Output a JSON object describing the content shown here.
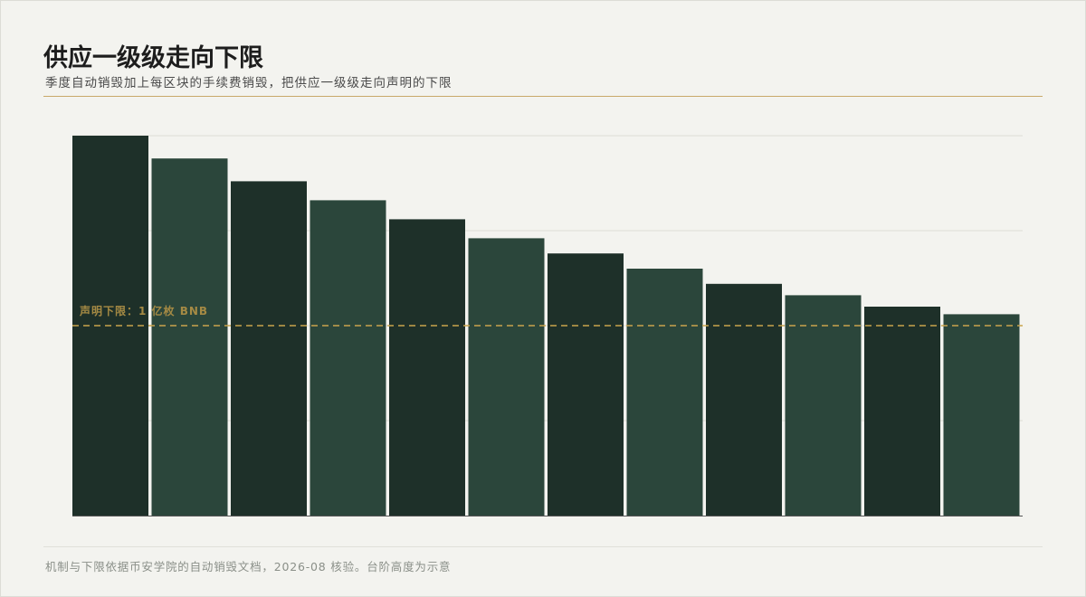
{
  "header": {
    "title": "供应一级级走向下限",
    "subtitle": "季度自动销毁加上每区块的手续费销毁，把供应一级级走向声明的下限"
  },
  "footer": {
    "note": "机制与下限依据币安学院的自动销毁文档，2026-08 核验。台阶高度为示意"
  },
  "chart_data": {
    "type": "bar",
    "categories": [
      "",
      "",
      "",
      "",
      "",
      "",
      "",
      "",
      "",
      "",
      "",
      ""
    ],
    "values": [
      2.0,
      1.88,
      1.76,
      1.66,
      1.56,
      1.46,
      1.38,
      1.3,
      1.22,
      1.16,
      1.1,
      1.06
    ],
    "ylim": [
      0,
      2.0
    ],
    "grid": true,
    "reference_line": {
      "value": 1.0,
      "label": "声明下限：1 亿枚 BNB",
      "style": "dashed"
    },
    "colors": {
      "bar_dark": "#1e3029",
      "bar_light": "#2b463b",
      "reference": "#c9a44c",
      "reference_text": "#a58a44",
      "grid": "#dcdcd6",
      "axis": "#555555"
    }
  }
}
